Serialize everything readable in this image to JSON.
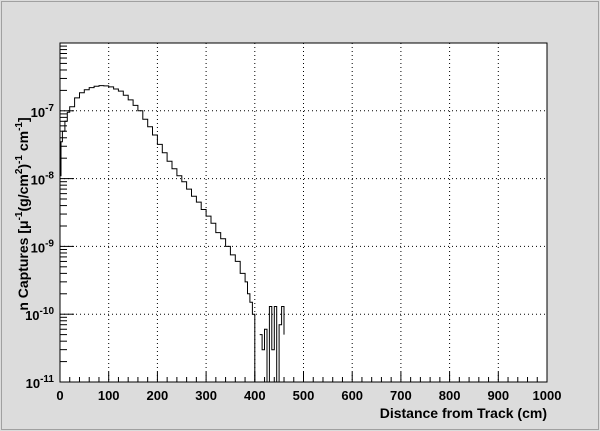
{
  "chart_data": {
    "type": "line",
    "title": "",
    "xlabel": "Distance from Track (cm)",
    "ylabel_main": "n Captures [",
    "ylabel_mu": "μ",
    "ylabel_exp1": "-1",
    "ylabel_mid": "(g/cm",
    "ylabel_exp2": "2",
    "ylabel_close": ")",
    "ylabel_exp3": "-1",
    "ylabel_cm": " cm",
    "ylabel_exp4": "-1",
    "ylabel_end": "]",
    "xlim": [
      0,
      1000
    ],
    "ylim": [
      1e-11,
      1e-06
    ],
    "yscale": "log",
    "grid": true,
    "legend": "none",
    "x_ticks": [
      "0",
      "100",
      "200",
      "300",
      "400",
      "500",
      "600",
      "700",
      "800",
      "900",
      "1000"
    ],
    "y_ticks": [
      {
        "base": "10",
        "exp": "-11"
      },
      {
        "base": "10",
        "exp": "-10"
      },
      {
        "base": "10",
        "exp": "-9"
      },
      {
        "base": "10",
        "exp": "-8"
      },
      {
        "base": "10",
        "exp": "-7"
      }
    ],
    "series": [
      {
        "x": [
          0,
          2,
          5,
          10,
          15,
          20,
          30,
          40,
          50,
          60,
          70,
          80,
          90,
          100,
          110,
          120,
          130,
          140,
          150,
          160,
          170,
          180,
          190,
          200,
          210,
          220,
          230,
          240,
          250,
          260,
          270,
          280,
          290,
          300,
          310,
          320,
          330,
          340,
          350,
          360,
          370,
          380,
          385,
          390,
          395,
          400
        ],
        "y": [
          1.1e-08,
          3.5e-08,
          5e-08,
          7e-08,
          9.5e-08,
          1.15e-07,
          1.55e-07,
          1.85e-07,
          2.05e-07,
          2.2e-07,
          2.3e-07,
          2.35e-07,
          2.33e-07,
          2.25e-07,
          2.1e-07,
          1.95e-07,
          1.7e-07,
          1.45e-07,
          1.2e-07,
          1e-07,
          7.5e-08,
          5.8e-08,
          4.4e-08,
          3.2e-08,
          2.4e-08,
          1.8e-08,
          1.4e-08,
          1.1e-08,
          9e-09,
          7e-09,
          5.5e-09,
          4.5e-09,
          3.5e-09,
          2.8e-09,
          2.2e-09,
          1.6e-09,
          1.3e-09,
          1e-09,
          7.5e-10,
          6e-10,
          4e-10,
          3e-10,
          2e-10,
          1.5e-10,
          1e-10,
          1e-11
        ]
      },
      {
        "x": [
          410,
          415,
          420,
          425,
          430,
          435,
          440,
          445,
          450,
          455,
          460
        ],
        "y": [
          5e-11,
          3e-11,
          6e-11,
          1e-11,
          1.3e-10,
          3e-11,
          1.3e-10,
          1e-11,
          7e-11,
          1.3e-10,
          5e-11
        ]
      }
    ]
  }
}
